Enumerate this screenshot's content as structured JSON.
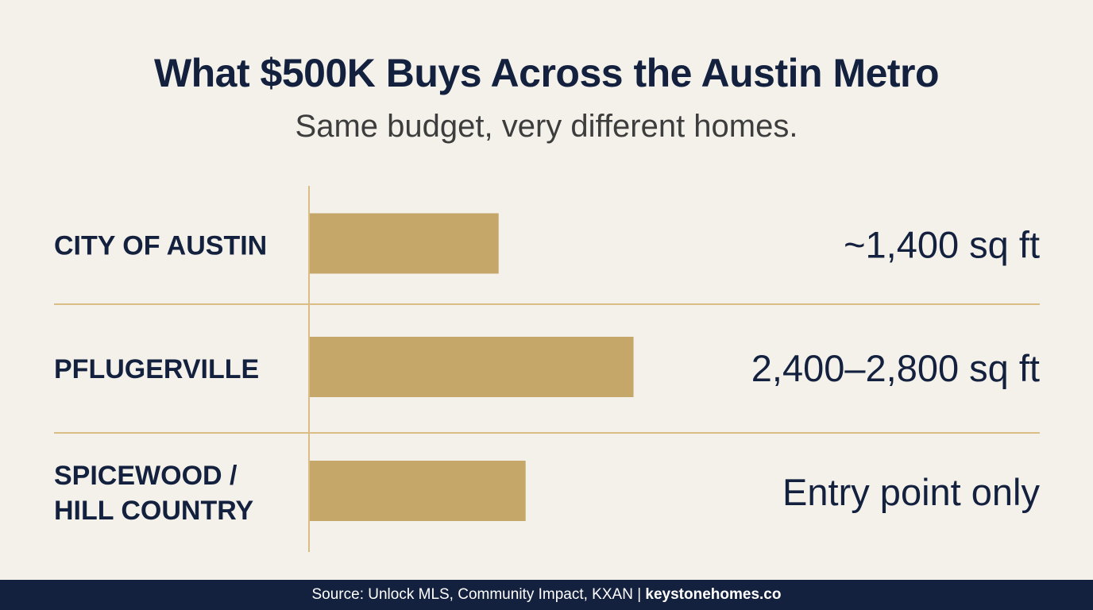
{
  "header": {
    "title": "What $500K Buys Across the Austin Metro",
    "subtitle": "Same budget, very different homes."
  },
  "colors": {
    "background": "#f4f1ea",
    "bar": "#c6a76a",
    "divider": "#d9bd85",
    "text": "#13213f",
    "footer_bg": "#13213f"
  },
  "chart_data": {
    "type": "bar",
    "orientation": "horizontal",
    "categories": [
      [
        "CITY OF AUSTIN"
      ],
      [
        "PFLUGERVILLE"
      ],
      [
        "SPICEWOOD /",
        "HILL COUNTRY"
      ]
    ],
    "values": [
      1400,
      2400,
      1600
    ],
    "value_labels": [
      "~1,400 sq ft",
      "2,400–2,800 sq ft",
      "Entry point only"
    ],
    "xlim": [
      0,
      3000
    ],
    "title": "What $500K Buys Across the Austin Metro",
    "subtitle": "Same budget, very different homes.",
    "grid": false,
    "legend": "none"
  },
  "footer": {
    "source": "Source: Unlock MLS, Community Impact, KXAN | ",
    "brand": "keystonehomes.co"
  }
}
